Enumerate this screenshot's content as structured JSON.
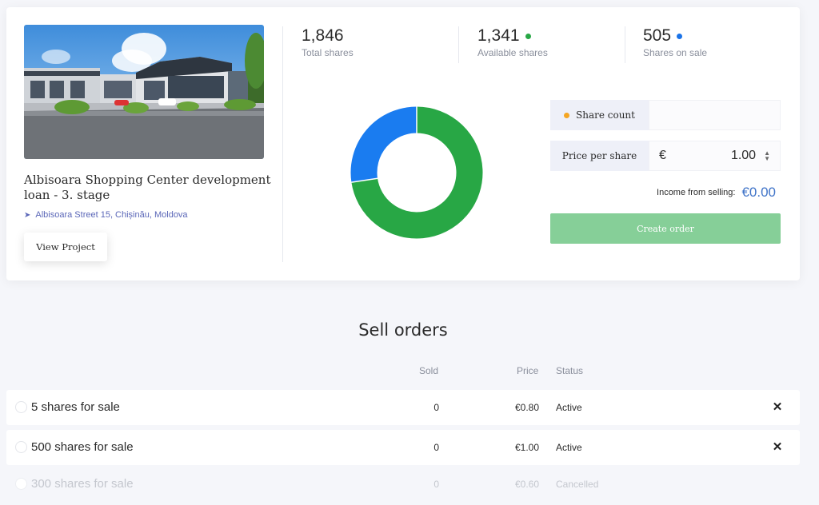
{
  "project": {
    "title": "Albisoara Shopping Center development loan - 3. stage",
    "address": "Albisoara Street 15, Chișinău, Moldova",
    "view_button": "View Project",
    "pin_icon": "location-arrow-icon"
  },
  "stats": [
    {
      "value": "1,846",
      "label": "Total shares",
      "dot_color": ""
    },
    {
      "value": "1,341",
      "label": "Available shares",
      "dot_color": "#28a745"
    },
    {
      "value": "505",
      "label": "Shares on sale",
      "dot_color": "#1a73e8"
    }
  ],
  "colors": {
    "available": "#28a745",
    "on_sale": "#1a7cf0",
    "share_count_dot": "#f5a623",
    "accent_blue": "#3f73c8",
    "create_button": "#86cf98"
  },
  "donut": {
    "total": 1846,
    "available": 1341,
    "on_sale": 505
  },
  "form": {
    "share_count_label": "Share count",
    "share_count_value": "",
    "price_label": "Price per share",
    "currency": "€",
    "price_value": "1.00",
    "income_label": "Income from selling:",
    "income_value": "€0.00",
    "create_button": "Create order"
  },
  "sell_orders": {
    "title": "Sell orders",
    "columns": {
      "sold": "Sold",
      "price": "Price",
      "status": "Status"
    },
    "rows": [
      {
        "name": "5 shares for sale",
        "sold": "0",
        "price": "€0.80",
        "status": "Active",
        "cancellable": true
      },
      {
        "name": "500 shares for sale",
        "sold": "0",
        "price": "€1.00",
        "status": "Active",
        "cancellable": true
      },
      {
        "name": "300 shares for sale",
        "sold": "0",
        "price": "€0.60",
        "status": "Cancelled",
        "cancellable": false
      }
    ],
    "close_symbol": "✕"
  }
}
